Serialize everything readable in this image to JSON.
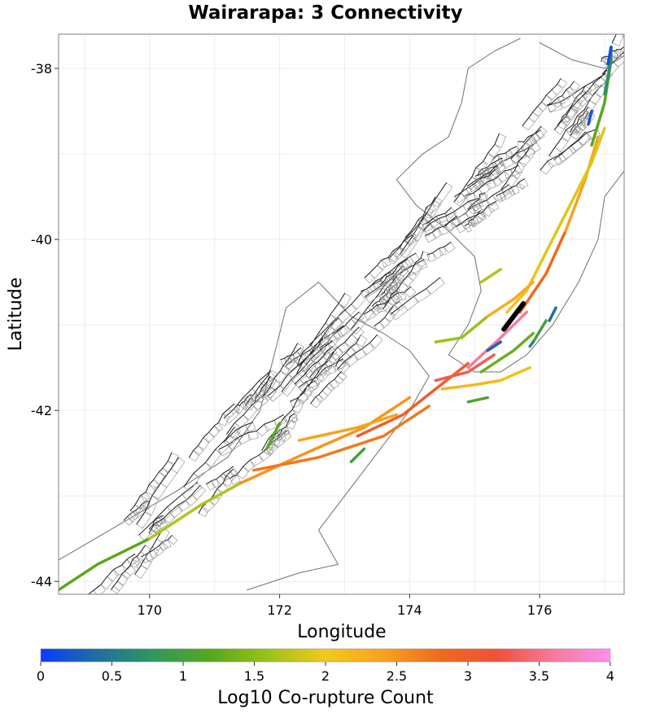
{
  "title": "Wairarapa: 3 Connectivity",
  "x_axis": {
    "label": "Longitude",
    "ticks": [
      "170",
      "172",
      "174",
      "176"
    ]
  },
  "y_axis": {
    "label": "Latitude",
    "ticks": [
      "-38",
      "-40",
      "-42",
      "-44"
    ]
  },
  "colorbar": {
    "label": "Log10 Co-rupture Count",
    "ticks": [
      "0",
      "0.5",
      "1",
      "1.5",
      "2",
      "2.5",
      "3",
      "3.5",
      "4"
    ],
    "stops": [
      "#0a3cff",
      "#1f6fa0",
      "#2e9a5a",
      "#56a81d",
      "#9cc219",
      "#f2c81c",
      "#f7a31d",
      "#ef6a1d",
      "#f0503a",
      "#f77a9a",
      "#ff8ef0"
    ]
  },
  "map": {
    "lon_range": [
      168.6,
      177.3
    ],
    "lat_range": [
      -44.15,
      -37.6
    ],
    "fault_trace_color": "#1e1e1e",
    "fault_plane_color": "#9a9a9a",
    "coast_color": "#707070",
    "highlight_color": "#000000",
    "highlight_name": "Wairarapa",
    "ruptures": [
      {
        "value": 1.2,
        "points": [
          [
            168.6,
            -44.1
          ],
          [
            169.2,
            -43.8
          ],
          [
            170.0,
            -43.5
          ]
        ]
      },
      {
        "value": 1.7,
        "points": [
          [
            170.0,
            -43.5
          ],
          [
            170.8,
            -43.1
          ],
          [
            171.4,
            -42.85
          ]
        ]
      },
      {
        "value": 2.5,
        "points": [
          [
            171.4,
            -42.85
          ],
          [
            172.4,
            -42.5
          ],
          [
            173.3,
            -42.2
          ],
          [
            174.0,
            -41.85
          ]
        ]
      },
      {
        "value": 2.7,
        "points": [
          [
            171.6,
            -42.7
          ],
          [
            172.6,
            -42.55
          ],
          [
            173.6,
            -42.3
          ],
          [
            174.3,
            -41.95
          ]
        ]
      },
      {
        "value": 3.0,
        "points": [
          [
            173.2,
            -42.3
          ],
          [
            173.9,
            -42.05
          ],
          [
            174.4,
            -41.75
          ],
          [
            174.9,
            -41.45
          ]
        ]
      },
      {
        "value": 2.4,
        "points": [
          [
            172.3,
            -42.35
          ],
          [
            173.2,
            -42.2
          ],
          [
            173.8,
            -42.05
          ]
        ]
      },
      {
        "value": 1.2,
        "points": [
          [
            171.8,
            -42.45
          ],
          [
            172.0,
            -42.15
          ]
        ]
      },
      {
        "value": 1.0,
        "points": [
          [
            173.3,
            -42.45
          ],
          [
            173.1,
            -42.6
          ]
        ]
      },
      {
        "value": 3.3,
        "points": [
          [
            174.4,
            -41.65
          ],
          [
            174.9,
            -41.55
          ],
          [
            175.3,
            -41.35
          ]
        ]
      },
      {
        "value": 3.6,
        "points": [
          [
            174.9,
            -41.5
          ],
          [
            175.4,
            -41.15
          ],
          [
            175.8,
            -40.85
          ]
        ]
      },
      {
        "value": 1.6,
        "points": [
          [
            174.4,
            -41.2
          ],
          [
            174.8,
            -41.15
          ],
          [
            175.2,
            -40.9
          ]
        ]
      },
      {
        "value": 2.2,
        "points": [
          [
            174.5,
            -41.75
          ],
          [
            175.0,
            -41.7
          ],
          [
            175.4,
            -41.65
          ]
        ]
      },
      {
        "value": 1.3,
        "points": [
          [
            175.1,
            -41.55
          ],
          [
            175.6,
            -41.3
          ],
          [
            175.9,
            -41.1
          ]
        ]
      },
      {
        "value": 2.8,
        "points": [
          [
            175.7,
            -40.85
          ],
          [
            176.1,
            -40.4
          ],
          [
            176.4,
            -39.9
          ]
        ]
      },
      {
        "value": 2.4,
        "points": [
          [
            176.4,
            -39.9
          ],
          [
            176.7,
            -39.3
          ],
          [
            176.9,
            -38.8
          ]
        ]
      },
      {
        "value": 2.1,
        "points": [
          [
            175.5,
            -40.85
          ],
          [
            175.8,
            -40.6
          ],
          [
            176.0,
            -40.3
          ]
        ]
      },
      {
        "value": 1.9,
        "points": [
          [
            176.0,
            -40.3
          ],
          [
            176.4,
            -39.7
          ],
          [
            176.8,
            -39.1
          ],
          [
            177.0,
            -38.7
          ]
        ]
      },
      {
        "value": 1.2,
        "points": [
          [
            176.8,
            -38.9
          ],
          [
            177.0,
            -38.4
          ],
          [
            177.1,
            -37.9
          ]
        ]
      },
      {
        "value": 0.7,
        "points": [
          [
            177.0,
            -38.3
          ],
          [
            177.1,
            -37.9
          ],
          [
            177.1,
            -37.75
          ]
        ]
      },
      {
        "value": 0.2,
        "points": [
          [
            176.75,
            -38.65
          ],
          [
            176.8,
            -38.5
          ]
        ]
      },
      {
        "value": 0.1,
        "points": [
          [
            177.05,
            -37.95
          ],
          [
            177.1,
            -37.75
          ]
        ]
      },
      {
        "value": 0.3,
        "points": [
          [
            175.2,
            -41.3
          ],
          [
            175.4,
            -41.2
          ]
        ]
      },
      {
        "value": 0.4,
        "points": [
          [
            176.15,
            -40.95
          ],
          [
            176.25,
            -40.8
          ]
        ]
      },
      {
        "value": 1.0,
        "points": [
          [
            175.9,
            -41.2
          ],
          [
            176.1,
            -40.95
          ]
        ]
      },
      {
        "value": 0.6,
        "points": [
          [
            175.9,
            -41.2
          ],
          [
            175.85,
            -41.25
          ]
        ]
      },
      {
        "value": 2.3,
        "points": [
          [
            175.2,
            -40.9
          ],
          [
            175.6,
            -40.7
          ],
          [
            175.9,
            -40.5
          ]
        ]
      },
      {
        "value": 1.7,
        "points": [
          [
            175.1,
            -40.5
          ],
          [
            175.4,
            -40.35
          ]
        ]
      },
      {
        "value": 1.1,
        "points": [
          [
            174.9,
            -41.9
          ],
          [
            175.2,
            -41.85
          ]
        ]
      },
      {
        "value": 2.1,
        "points": [
          [
            175.4,
            -41.65
          ],
          [
            175.85,
            -41.5
          ]
        ]
      }
    ],
    "highlight": [
      [
        175.45,
        -41.05
      ],
      [
        175.75,
        -40.75
      ]
    ]
  }
}
